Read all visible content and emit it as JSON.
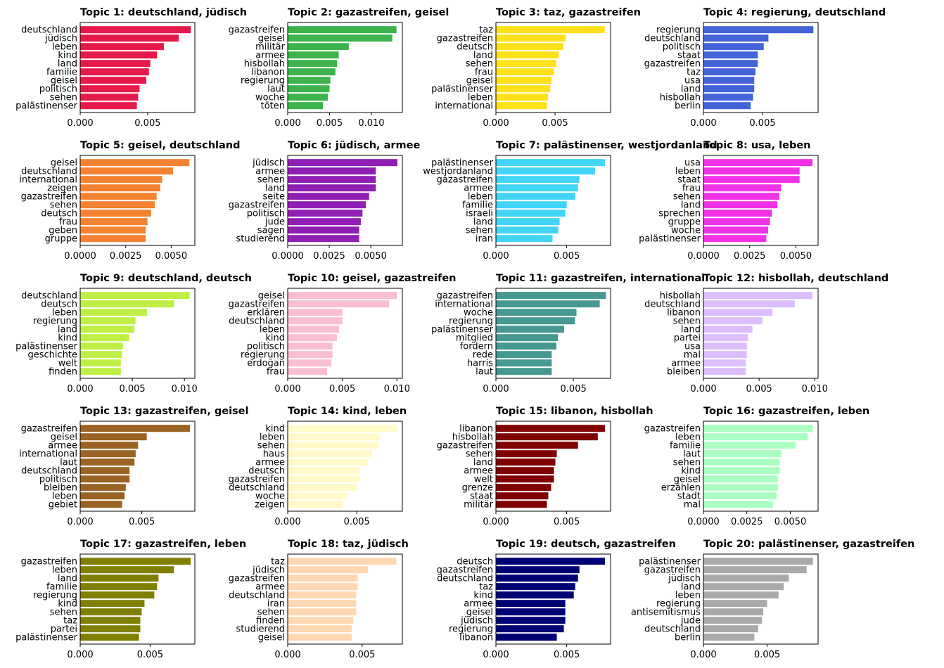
{
  "chart_data": [
    {
      "type": "bar",
      "orientation": "horizontal",
      "title": "Topic 1: deutschland, jüdisch",
      "color": "#e6194b",
      "xlim": [
        0,
        0.0085
      ],
      "xticks": [
        0,
        0.005
      ],
      "xtick_labels": [
        "0.000",
        "0.005"
      ],
      "categories": [
        "deutschland",
        "jüdisch",
        "leben",
        "kind",
        "land",
        "familie",
        "geisel",
        "politisch",
        "sehen",
        "palästinenser"
      ],
      "values": [
        0.0082,
        0.0073,
        0.0062,
        0.0057,
        0.0052,
        0.0051,
        0.0049,
        0.0044,
        0.0043,
        0.0042
      ]
    },
    {
      "type": "bar",
      "orientation": "horizontal",
      "title": "Topic 2: gazastreifen, geisel",
      "color": "#3cb44b",
      "xlim": [
        0,
        0.0137
      ],
      "xticks": [
        0,
        0.005,
        0.01
      ],
      "xtick_labels": [
        "0.000",
        "0.005",
        "0.010"
      ],
      "categories": [
        "gazastreifen",
        "geisel",
        "militär",
        "armee",
        "hisbollah",
        "libanon",
        "regierung",
        "laut",
        "woche",
        "töten"
      ],
      "values": [
        0.013,
        0.0125,
        0.0073,
        0.0061,
        0.0059,
        0.0057,
        0.0051,
        0.005,
        0.0048,
        0.0042
      ]
    },
    {
      "type": "bar",
      "orientation": "horizontal",
      "title": "Topic 3: taz, gazastreifen",
      "color": "#ffe119",
      "xlim": [
        0,
        0.0097
      ],
      "xticks": [
        0,
        0.005
      ],
      "xtick_labels": [
        "0.000",
        "0.005"
      ],
      "categories": [
        "taz",
        "gazastreifen",
        "deutsch",
        "land",
        "sehen",
        "frau",
        "geisel",
        "palästinenser",
        "leben",
        "international"
      ],
      "values": [
        0.0092,
        0.0059,
        0.0057,
        0.0053,
        0.0051,
        0.0049,
        0.0047,
        0.0046,
        0.0044,
        0.0043
      ]
    },
    {
      "type": "bar",
      "orientation": "horizontal",
      "title": "Topic 4: regierung, deutschland",
      "color": "#4363d8",
      "xlim": [
        0,
        0.0097
      ],
      "xticks": [
        0,
        0.005
      ],
      "xtick_labels": [
        "0.000",
        "0.005"
      ],
      "categories": [
        "regierung",
        "deutschland",
        "politisch",
        "staat",
        "gazastreifen",
        "taz",
        "usa",
        "land",
        "hisbollah",
        "berlin"
      ],
      "values": [
        0.0093,
        0.0055,
        0.0051,
        0.0046,
        0.0046,
        0.0044,
        0.0043,
        0.0043,
        0.0042,
        0.004
      ]
    },
    {
      "type": "bar",
      "orientation": "horizontal",
      "title": "Topic 5: geisel, deutschland",
      "color": "#f58231",
      "xlim": [
        0,
        0.0063
      ],
      "xticks": [
        0,
        0.0025,
        0.005
      ],
      "xtick_labels": [
        "0.0000",
        "0.0025",
        "0.0050"
      ],
      "categories": [
        "geisel",
        "deutschland",
        "international",
        "zeigen",
        "gazastreifen",
        "sehen",
        "deutsch",
        "frau",
        "geben",
        "gruppe"
      ],
      "values": [
        0.006,
        0.0051,
        0.0045,
        0.0044,
        0.0042,
        0.0041,
        0.0039,
        0.0037,
        0.0036,
        0.0036
      ]
    },
    {
      "type": "bar",
      "orientation": "horizontal",
      "title": "Topic 6: jüdisch, armee",
      "color": "#911eb4",
      "xlim": [
        0,
        0.0069
      ],
      "xticks": [
        0,
        0.0025,
        0.005
      ],
      "xtick_labels": [
        "0.0000",
        "0.0025",
        "0.0050"
      ],
      "categories": [
        "jüdisch",
        "armee",
        "sehen",
        "land",
        "seite",
        "gazastreifen",
        "politisch",
        "jude",
        "sagen",
        "studierend"
      ],
      "values": [
        0.0066,
        0.0053,
        0.0053,
        0.0053,
        0.0049,
        0.0047,
        0.0045,
        0.0044,
        0.0043,
        0.0043
      ]
    },
    {
      "type": "bar",
      "orientation": "horizontal",
      "title": "Topic 7: palästinenser, westjordanland",
      "color": "#42d4f4",
      "xlim": [
        0,
        0.0081
      ],
      "xticks": [
        0,
        0.005
      ],
      "xtick_labels": [
        "0.000",
        "0.005"
      ],
      "categories": [
        "palästinenser",
        "westjordanland",
        "gazastreifen",
        "armee",
        "leben",
        "familie",
        "israeli",
        "land",
        "sehen",
        "iran"
      ],
      "values": [
        0.0077,
        0.007,
        0.0059,
        0.0058,
        0.0056,
        0.005,
        0.0049,
        0.0045,
        0.0044,
        0.004
      ]
    },
    {
      "type": "bar",
      "orientation": "horizontal",
      "title": "Topic 8: usa, leben",
      "color": "#f032e6",
      "xlim": [
        0,
        0.0062
      ],
      "xticks": [
        0,
        0.0025,
        0.005
      ],
      "xtick_labels": [
        "0.0000",
        "0.0025",
        "0.0050"
      ],
      "categories": [
        "usa",
        "leben",
        "staat",
        "frau",
        "sehen",
        "land",
        "sprechen",
        "gruppe",
        "woche",
        "palästinenser"
      ],
      "values": [
        0.0059,
        0.0052,
        0.0052,
        0.0042,
        0.0041,
        0.004,
        0.0037,
        0.0036,
        0.0035,
        0.0034
      ]
    },
    {
      "type": "bar",
      "orientation": "horizontal",
      "title": "Topic 9: deutschland, deutsch",
      "color": "#bfef45",
      "xlim": [
        0,
        0.011
      ],
      "xticks": [
        0,
        0.005,
        0.01
      ],
      "xtick_labels": [
        "0.000",
        "0.005",
        "0.010"
      ],
      "categories": [
        "deutschland",
        "deutsch",
        "leben",
        "regierung",
        "land",
        "kind",
        "palästinenser",
        "geschichte",
        "welt",
        "finden"
      ],
      "values": [
        0.0105,
        0.009,
        0.0064,
        0.0053,
        0.0052,
        0.0047,
        0.0041,
        0.004,
        0.0039,
        0.0039
      ]
    },
    {
      "type": "bar",
      "orientation": "horizontal",
      "title": "Topic 10: geisel, gazastreifen",
      "color": "#fabed4",
      "xlim": [
        0,
        0.0105
      ],
      "xticks": [
        0,
        0.005,
        0.01
      ],
      "xtick_labels": [
        "0.000",
        "0.005",
        "0.010"
      ],
      "categories": [
        "geisel",
        "gazastreifen",
        "erklären",
        "deutschland",
        "leben",
        "kind",
        "politisch",
        "regierung",
        "erdoğan",
        "frau"
      ],
      "values": [
        0.01,
        0.0093,
        0.005,
        0.005,
        0.0047,
        0.0045,
        0.0041,
        0.0041,
        0.004,
        0.0036
      ]
    },
    {
      "type": "bar",
      "orientation": "horizontal",
      "title": "Topic 11: gazastreifen, international",
      "color": "#469990",
      "xlim": [
        0,
        0.0074
      ],
      "xticks": [
        0,
        0.005
      ],
      "xtick_labels": [
        "0.000",
        "0.005"
      ],
      "categories": [
        "gazastreifen",
        "international",
        "woche",
        "regierung",
        "palästinenser",
        "mitglied",
        "fordern",
        "rede",
        "harris",
        "laut"
      ],
      "values": [
        0.0071,
        0.0067,
        0.0052,
        0.0051,
        0.0044,
        0.004,
        0.0039,
        0.0036,
        0.0036,
        0.0036
      ]
    },
    {
      "type": "bar",
      "orientation": "horizontal",
      "title": "Topic 12: hisbollah, deutschland",
      "color": "#dcbeff",
      "xlim": [
        0,
        0.0103
      ],
      "xticks": [
        0,
        0.005,
        0.01
      ],
      "xtick_labels": [
        "0.000",
        "0.005",
        "0.010"
      ],
      "categories": [
        "hisbollah",
        "deutschland",
        "libanon",
        "sehen",
        "land",
        "partei",
        "usa",
        "mal",
        "armee",
        "bleiben"
      ],
      "values": [
        0.0098,
        0.0082,
        0.0062,
        0.0053,
        0.0044,
        0.004,
        0.0039,
        0.0039,
        0.0038,
        0.0038
      ]
    },
    {
      "type": "bar",
      "orientation": "horizontal",
      "title": "Topic 13: gazastreifen, geisel",
      "color": "#9a6324",
      "xlim": [
        0,
        0.0093
      ],
      "xticks": [
        0,
        0.005
      ],
      "xtick_labels": [
        "0.000",
        "0.005"
      ],
      "categories": [
        "gazastreifen",
        "geisel",
        "armee",
        "international",
        "laut",
        "deutschland",
        "politisch",
        "bleiben",
        "leben",
        "gebiet"
      ],
      "values": [
        0.0089,
        0.0054,
        0.0047,
        0.0045,
        0.0044,
        0.004,
        0.004,
        0.0037,
        0.0036,
        0.0034
      ]
    },
    {
      "type": "bar",
      "orientation": "horizontal",
      "title": "Topic 14: kind, leben",
      "color": "#fffac8",
      "xlim": [
        0,
        0.0083
      ],
      "xticks": [
        0,
        0.005
      ],
      "xtick_labels": [
        "0.000",
        "0.005"
      ],
      "categories": [
        "kind",
        "leben",
        "sehen",
        "haus",
        "armee",
        "deutsch",
        "gazastreifen",
        "deutschland",
        "woche",
        "zeigen"
      ],
      "values": [
        0.0079,
        0.0067,
        0.0066,
        0.0061,
        0.0058,
        0.0052,
        0.0052,
        0.005,
        0.0043,
        0.004
      ]
    },
    {
      "type": "bar",
      "orientation": "horizontal",
      "title": "Topic 15: libanon, hisbollah",
      "color": "#800000",
      "xlim": [
        0,
        0.0081
      ],
      "xticks": [
        0,
        0.005
      ],
      "xtick_labels": [
        "0.000",
        "0.005"
      ],
      "categories": [
        "libanon",
        "hisbollah",
        "gazastreifen",
        "sehen",
        "land",
        "armee",
        "welt",
        "grenze",
        "staat",
        "militär"
      ],
      "values": [
        0.0077,
        0.0072,
        0.0058,
        0.0043,
        0.0042,
        0.0041,
        0.0041,
        0.0039,
        0.0037,
        0.0036
      ]
    },
    {
      "type": "bar",
      "orientation": "horizontal",
      "title": "Topic 16: gazastreifen, leben",
      "color": "#aaffc3",
      "xlim": [
        0,
        0.0066
      ],
      "xticks": [
        0,
        0.0025,
        0.005
      ],
      "xtick_labels": [
        "0.0000",
        "0.0025",
        "0.0050"
      ],
      "categories": [
        "gazastreifen",
        "leben",
        "familie",
        "laut",
        "sehen",
        "kind",
        "geisel",
        "erzählen",
        "stadt",
        "mal"
      ],
      "values": [
        0.0063,
        0.006,
        0.0053,
        0.0045,
        0.0044,
        0.0044,
        0.0043,
        0.0043,
        0.0042,
        0.004
      ]
    },
    {
      "type": "bar",
      "orientation": "horizontal",
      "title": "Topic 17: gazastreifen, leben",
      "color": "#808000",
      "xlim": [
        0,
        0.0082
      ],
      "xticks": [
        0,
        0.005
      ],
      "xtick_labels": [
        "0.000",
        "0.005"
      ],
      "categories": [
        "gazastreifen",
        "leben",
        "land",
        "familie",
        "regierung",
        "kind",
        "sehen",
        "taz",
        "partei",
        "palästinenser"
      ],
      "values": [
        0.0079,
        0.0067,
        0.0056,
        0.0055,
        0.0053,
        0.0046,
        0.0044,
        0.0043,
        0.0043,
        0.0042
      ]
    },
    {
      "type": "bar",
      "orientation": "horizontal",
      "title": "Topic 18: taz, jüdisch",
      "color": "#ffd8b1",
      "xlim": [
        0,
        0.0077
      ],
      "xticks": [
        0,
        0.005
      ],
      "xtick_labels": [
        "0.000",
        "0.005"
      ],
      "categories": [
        "taz",
        "jüdisch",
        "gazastreifen",
        "armee",
        "deutschland",
        "iran",
        "sehen",
        "finden",
        "studierend",
        "geisel"
      ],
      "values": [
        0.0073,
        0.0054,
        0.0047,
        0.0047,
        0.0046,
        0.0046,
        0.0046,
        0.0044,
        0.0043,
        0.0043
      ]
    },
    {
      "type": "bar",
      "orientation": "horizontal",
      "title": "Topic 19: deutsch, gazastreifen",
      "color": "#000075",
      "xlim": [
        0,
        0.0081
      ],
      "xticks": [
        0,
        0.005
      ],
      "xtick_labels": [
        "0.000",
        "0.005"
      ],
      "categories": [
        "deutsch",
        "gazastreifen",
        "deutschland",
        "taz",
        "kind",
        "armee",
        "geisel",
        "jüdisch",
        "regierung",
        "libanon"
      ],
      "values": [
        0.0077,
        0.0059,
        0.0058,
        0.0056,
        0.0055,
        0.0049,
        0.0049,
        0.0049,
        0.0048,
        0.0043
      ]
    },
    {
      "type": "bar",
      "orientation": "horizontal",
      "title": "Topic 20: palästinenser, gazastreifen",
      "color": "#a9a9a9",
      "xlim": [
        0,
        0.009
      ],
      "xticks": [
        0,
        0.005
      ],
      "xtick_labels": [
        "0.000",
        "0.005"
      ],
      "categories": [
        "palästinenser",
        "gazastreifen",
        "jüdisch",
        "land",
        "leben",
        "regierung",
        "antisemitismus",
        "jude",
        "deutschland",
        "berlin"
      ],
      "values": [
        0.0086,
        0.0081,
        0.0067,
        0.0063,
        0.0059,
        0.005,
        0.0047,
        0.0046,
        0.0043,
        0.004
      ]
    }
  ]
}
